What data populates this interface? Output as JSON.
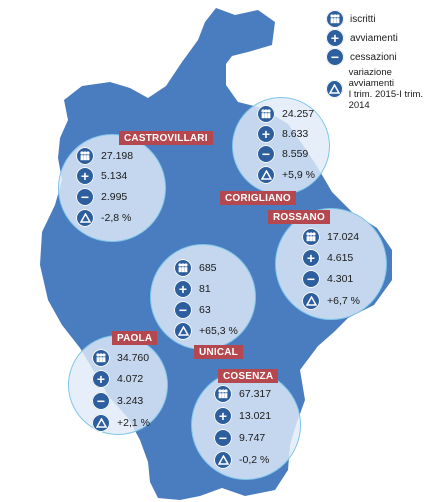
{
  "colors": {
    "region_fill": "#4a7cc0",
    "label_bg": "#b5474e",
    "icon_bg": "#2d5f9e"
  },
  "legend": {
    "iscritti": "iscritti",
    "avviamenti": "avviamenti",
    "cessazioni": "cessazioni",
    "variazione_line1": "variazione avviamenti",
    "variazione_line2": "I trim. 2015-I trim. 2014"
  },
  "centers": {
    "castrovillari": {
      "name": "CASTROVILLARI",
      "iscritti": "27.198",
      "avviamenti": "5.134",
      "cessazioni": "2.995",
      "variazione": "-2,8 %"
    },
    "corigliano": {
      "name": "CORIGLIANO",
      "iscritti": "24.257",
      "avviamenti": "8.633",
      "cessazioni": "8.559",
      "variazione": "+5,9 %"
    },
    "rossano": {
      "name": "ROSSANO",
      "iscritti": "17.024",
      "avviamenti": "4.615",
      "cessazioni": "4.301",
      "variazione": "+6,7 %"
    },
    "unical": {
      "name": "UNICAL",
      "iscritti": "685",
      "avviamenti": "81",
      "cessazioni": "63",
      "variazione": "+65,3 %"
    },
    "paola": {
      "name": "PAOLA",
      "iscritti": "34.760",
      "avviamenti": "4.072",
      "cessazioni": "3.243",
      "variazione": "+2,1 %"
    },
    "cosenza": {
      "name": "COSENZA",
      "iscritti": "67.317",
      "avviamenti": "13.021",
      "cessazioni": "9.747",
      "variazione": "-0,2 %"
    }
  }
}
